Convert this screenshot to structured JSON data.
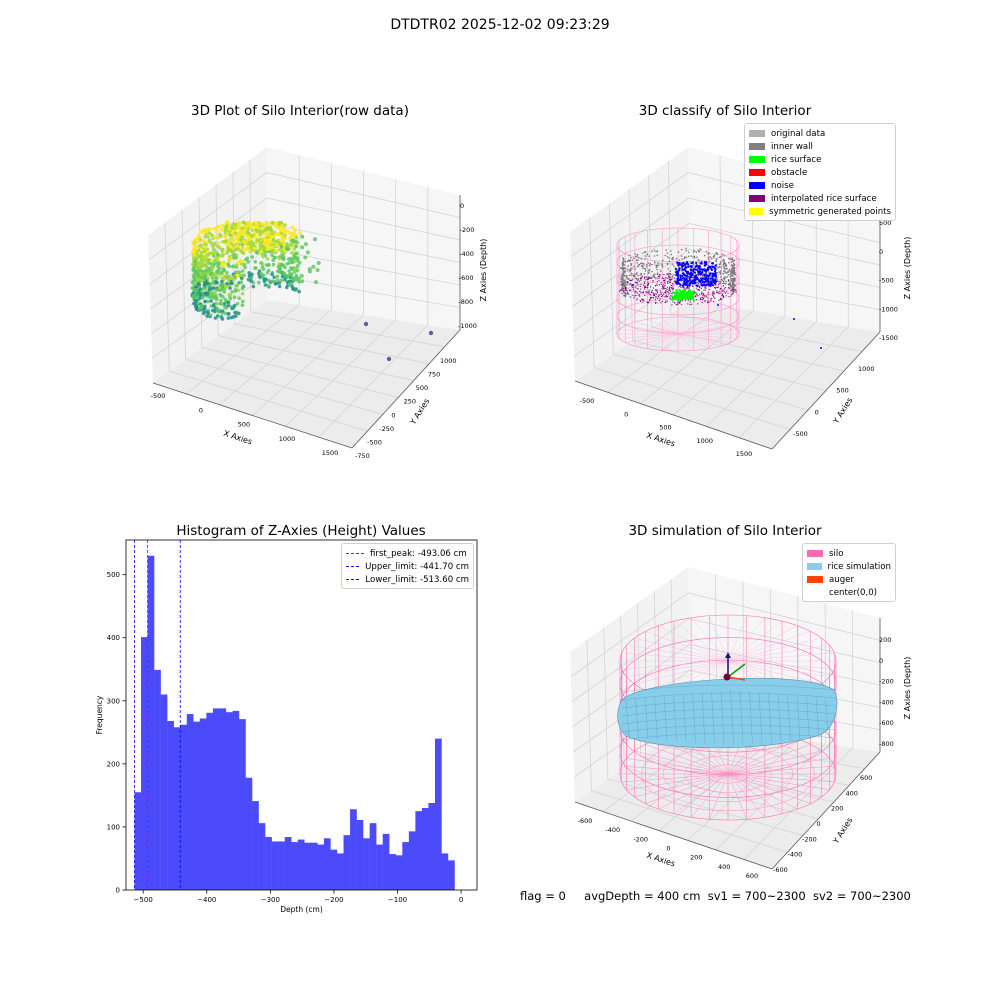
{
  "suptitle": "DTDTR02 2025-12-02 09:23:29",
  "chart_data": [
    {
      "type": "scatter",
      "title": "3D Plot of Silo Interior(row data)",
      "xlabel": "X Axies",
      "ylabel": "Y Axies",
      "zlabel": "Z Axies (Depth)",
      "xticks": [
        "-500",
        "0",
        "500",
        "1000",
        "1500"
      ],
      "yticks": [
        "-750",
        "-500",
        "-250",
        "0",
        "250",
        "500",
        "750",
        "1000"
      ],
      "zticks": [
        "-1000",
        "-800",
        "-600",
        "-400",
        "-200",
        "0"
      ],
      "colormap": "viridis",
      "grid": true
    },
    {
      "type": "scatter",
      "title": "3D classify of Silo Interior",
      "xlabel": "X Axies",
      "ylabel": "Y Axies",
      "zlabel": "Z Axies (Depth)",
      "xticks": [
        "-500",
        "0",
        "500",
        "1000",
        "1500"
      ],
      "yticks": [
        "-500",
        "0",
        "500",
        "1000"
      ],
      "zticks": [
        "-1500",
        "-1000",
        "-500",
        "0",
        "500"
      ],
      "legend_position": "top-right",
      "legend": [
        {
          "label": "original data",
          "color": "#b0b0b0"
        },
        {
          "label": "inner wall",
          "color": "#808080"
        },
        {
          "label": "rice surface",
          "color": "#00ff00"
        },
        {
          "label": "obstacle",
          "color": "#ff0000"
        },
        {
          "label": "noise",
          "color": "#0000ff"
        },
        {
          "label": "interpolated rice surface",
          "color": "#800080"
        },
        {
          "label": "symmetric generated points",
          "color": "#ffff00"
        }
      ],
      "grid": true
    },
    {
      "type": "bar",
      "title": "Histogram of Z-Axies (Height) Values",
      "xlabel": "Depth (cm)",
      "ylabel": "Frequency",
      "xlim": [
        -527,
        25
      ],
      "ylim": [
        0,
        555
      ],
      "xticks": [
        -500,
        -400,
        -300,
        -200,
        -100,
        0
      ],
      "xtick_labels": [
        "−500",
        "−400",
        "−300",
        "−200",
        "−100",
        "0"
      ],
      "yticks": [
        0,
        100,
        200,
        300,
        400,
        500
      ],
      "bin_start": -513.6,
      "bin_width": 10.272,
      "values": [
        155,
        401,
        530,
        349,
        310,
        268,
        258,
        262,
        279,
        267,
        272,
        281,
        288,
        288,
        282,
        284,
        271,
        178,
        141,
        106,
        84,
        77,
        77,
        84,
        76,
        80,
        75,
        75,
        72,
        82,
        64,
        58,
        87,
        128,
        111,
        82,
        106,
        72,
        89,
        57,
        55,
        76,
        93,
        125,
        130,
        138,
        240,
        58,
        47
      ],
      "bar_color": "#4b4bfb",
      "vlines": [
        {
          "label": "first_peak: -493.06 cm",
          "x": -493.06,
          "color": "#ff0000"
        },
        {
          "label": "Upper_limit: -441.70 cm",
          "x": -441.7,
          "color": "#0000ff"
        },
        {
          "label": "Lower_limit: -513.60 cm",
          "x": -513.6,
          "color": "#0000ff"
        }
      ],
      "legend_position": "top-right",
      "grid": false
    },
    {
      "type": "scatter",
      "title": "3D simulation of Silo Interior",
      "xlabel": "X Axies",
      "ylabel": "Y Axies",
      "zlabel": "Z Axies (Depth)",
      "xticks": [
        "-600",
        "-400",
        "-200",
        "0",
        "200",
        "400",
        "600"
      ],
      "yticks": [
        "-600",
        "-400",
        "-200",
        "0",
        "200",
        "400",
        "600"
      ],
      "zticks": [
        "-800",
        "-600",
        "-400",
        "-200",
        "0",
        "200"
      ],
      "legend_position": "top-right",
      "legend": [
        {
          "label": "silo",
          "color": "#ff69b4"
        },
        {
          "label": "rice simulation",
          "color": "#87ceeb"
        },
        {
          "label": "auger",
          "color": "#ff4500"
        },
        {
          "label": "center(0,0)",
          "color": "#ffffff"
        }
      ],
      "grid": true
    }
  ],
  "footer": {
    "flag": "flag = 0",
    "avg_depth": "avgDepth = 400 cm",
    "sv1": "sv1 = 700~2300",
    "sv2": "sv2 = 700~2300"
  }
}
